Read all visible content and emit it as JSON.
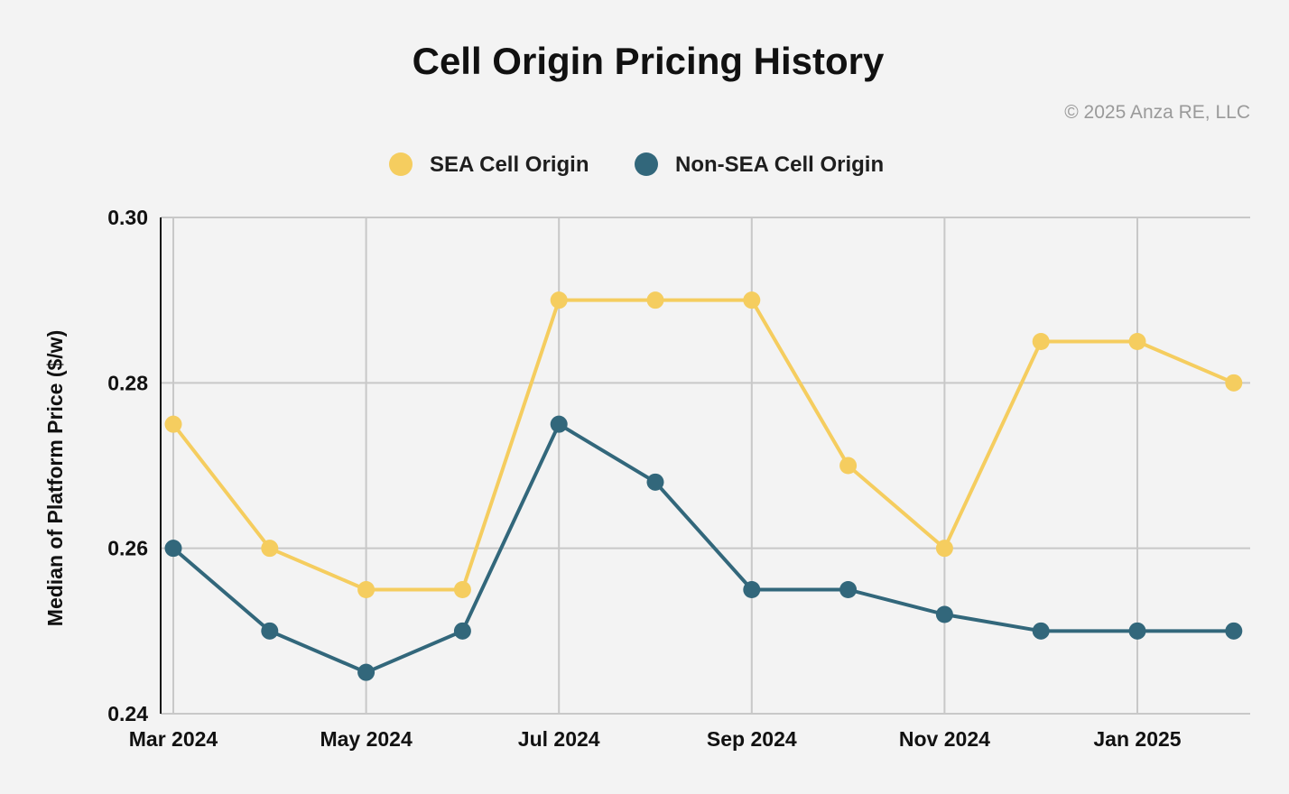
{
  "chart_data": {
    "type": "line",
    "title": "Cell Origin Pricing History",
    "copyright": "© 2025 Anza RE, LLC",
    "xlabel": "",
    "ylabel": "Median of Platform Price ($/w)",
    "ylim": [
      0.24,
      0.3
    ],
    "yticks": [
      0.24,
      0.26,
      0.28,
      0.3
    ],
    "ytick_labels": [
      "0.24",
      "0.26",
      "0.28",
      "0.30"
    ],
    "grid": true,
    "legend_position": "top-center",
    "categories": [
      "Mar 2024",
      "Apr 2024",
      "May 2024",
      "Jun 2024",
      "Jul 2024",
      "Aug 2024",
      "Sep 2024",
      "Oct 2024",
      "Nov 2024",
      "Dec 2024",
      "Jan 2025",
      "Feb 2025"
    ],
    "x_tick_labels": [
      "Mar 2024",
      "May 2024",
      "Jul 2024",
      "Sep 2024",
      "Nov 2024",
      "Jan 2025"
    ],
    "series": [
      {
        "name": "SEA Cell Origin",
        "color": "#f5cd5f",
        "values": [
          0.275,
          0.26,
          0.255,
          0.255,
          0.29,
          0.29,
          0.29,
          0.27,
          0.26,
          0.285,
          0.285,
          0.28
        ]
      },
      {
        "name": "Non-SEA Cell Origin",
        "color": "#32677b",
        "values": [
          0.26,
          0.25,
          0.245,
          0.25,
          0.275,
          0.268,
          0.255,
          0.255,
          0.252,
          0.25,
          0.25,
          0.25
        ]
      }
    ]
  }
}
